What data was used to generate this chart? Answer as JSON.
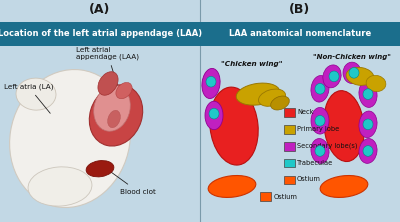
{
  "panel_A_label": "(A)",
  "panel_B_label": "(B)",
  "panel_A_title": "Location of the left atrial appendage (LAA)",
  "panel_B_title": "LAA anatomical nomenclature",
  "title_bg_color": "#1b6e8c",
  "title_text_color": "#ffffff",
  "bg_color": "#c2d8e5",
  "bg_color_bottom": "#afc8d8",
  "panel_label_color": "#1a1a1a",
  "legend_B": [
    {
      "label": "Neck",
      "color": "#e82020"
    },
    {
      "label": "Primary lobe",
      "color": "#c9a200"
    },
    {
      "label": "Secondary lobe(s)",
      "color": "#c020c0"
    },
    {
      "label": "Trabeculae",
      "color": "#20c8c8"
    },
    {
      "label": "Ostium",
      "color": "#ff5500"
    }
  ],
  "chicken_wing_label": "\"Chicken wing\"",
  "non_chicken_wing_label": "\"Non-Chicken wing\"",
  "panel_label_fontsize": 9,
  "title_fontsize": 6.0,
  "annot_fontsize": 5.2,
  "legend_fontsize": 4.8
}
